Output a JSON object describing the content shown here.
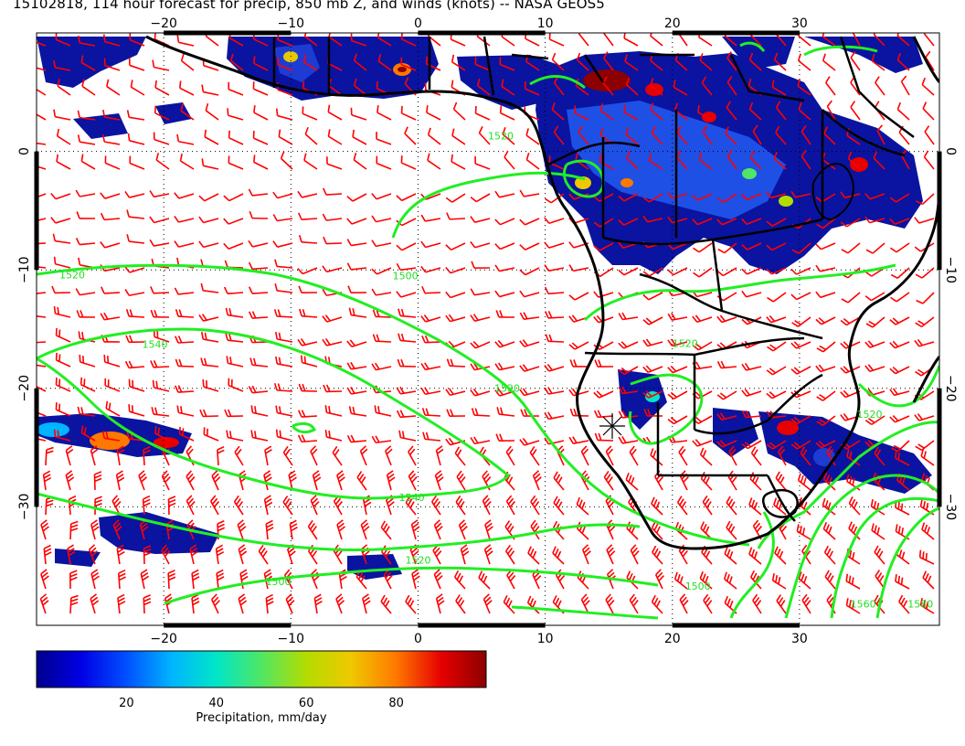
{
  "title": "15102818, 114 hour forecast for precip, 850 mb Z, and winds (knots) -- NASA GEOS5",
  "map": {
    "lon_range": [
      -30,
      41
    ],
    "lat_range": [
      -40,
      10
    ],
    "lon_ticks": [
      -20,
      -10,
      0,
      10,
      20,
      30
    ],
    "lat_ticks": [
      0,
      -10,
      -20,
      -30
    ],
    "lon_tick_labels": [
      "−20",
      "−10",
      "0",
      "10",
      "20",
      "30"
    ],
    "lat_tick_labels": [
      "0",
      "−10",
      "−20",
      "−30"
    ],
    "gridlines": "dotted",
    "coastline_color": "#000000",
    "contour_color": "#22ee22",
    "barb_color": "#ff0000"
  },
  "contour_labels": [
    {
      "text": "1520",
      "lon": -28.2,
      "lat": -10.7
    },
    {
      "text": "1540",
      "lon": -21.7,
      "lat": -16.6
    },
    {
      "text": "1500",
      "lon": -2.0,
      "lat": -10.8
    },
    {
      "text": "1520",
      "lon": 6.0,
      "lat": -20.3
    },
    {
      "text": "1540",
      "lon": -1.5,
      "lat": -29.5
    },
    {
      "text": "1520",
      "lon": -1.0,
      "lat": -34.8
    },
    {
      "text": "1500",
      "lon": -12.0,
      "lat": -36.6
    },
    {
      "text": "1520",
      "lon": 20.0,
      "lat": -16.5
    },
    {
      "text": "1520",
      "lon": 34.5,
      "lat": -22.5
    },
    {
      "text": "1560",
      "lon": 34.0,
      "lat": -38.5
    },
    {
      "text": "1580",
      "lon": 38.5,
      "lat": -38.5
    },
    {
      "text": "1500",
      "lon": 21.0,
      "lat": -37.0
    },
    {
      "text": "1520",
      "lon": 5.5,
      "lat": 1.0
    }
  ],
  "colorbar": {
    "label": "Precipitation, mm/day",
    "ticks": [
      "20",
      "40",
      "60",
      "80"
    ],
    "tick_values": [
      20,
      40,
      60,
      80
    ],
    "range": [
      0,
      100
    ],
    "colors": [
      "#00008c",
      "#0000e6",
      "#0050ff",
      "#00b4ff",
      "#00e6c8",
      "#50e664",
      "#b4dc00",
      "#f0c800",
      "#ff7800",
      "#e60000",
      "#8c0000"
    ]
  }
}
